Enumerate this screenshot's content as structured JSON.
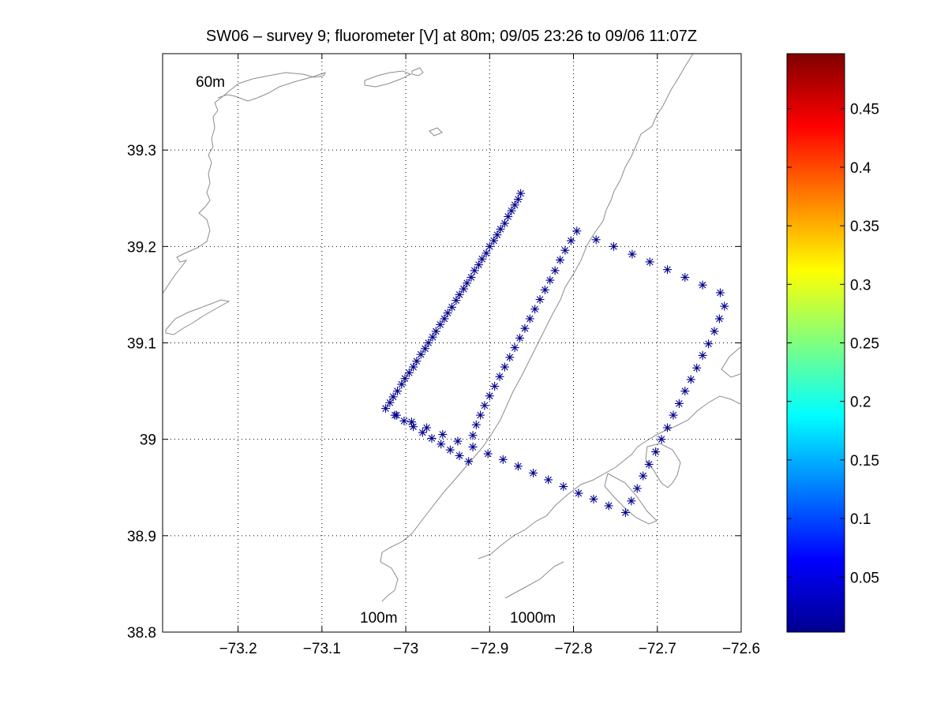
{
  "chart_data": {
    "type": "scatter",
    "title": "SW06 – survey 9; fluorometer [V] at 80m; 09/05 23:26 to 09/06 11:07Z",
    "xlim": [
      -73.29,
      -72.6
    ],
    "ylim": [
      38.8,
      39.4
    ],
    "x_ticks": [
      -73.2,
      -73.1,
      -73.0,
      -72.9,
      -72.8,
      -72.7,
      -72.6
    ],
    "x_tick_labels": [
      "−73.2",
      "−73.1",
      "−73",
      "−72.9",
      "−72.8",
      "−72.7",
      "−72.6"
    ],
    "y_ticks": [
      38.8,
      38.9,
      39.0,
      39.1,
      39.2,
      39.3
    ],
    "y_tick_labels": [
      "38.8",
      "38.9",
      "39",
      "39.1",
      "39.2",
      "39.3"
    ],
    "grid": true,
    "marker": "asterisk",
    "marker_color": "#00008b",
    "series": [
      {
        "points": [
          [
            -72.863,
            39.255
          ],
          [
            -72.866,
            39.249
          ],
          [
            -72.87,
            39.243
          ],
          [
            -72.874,
            39.237
          ],
          [
            -72.878,
            39.231
          ],
          [
            -72.882,
            39.224
          ],
          [
            -72.887,
            39.218
          ],
          [
            -72.891,
            39.212
          ],
          [
            -72.895,
            39.206
          ],
          [
            -72.9,
            39.2
          ],
          [
            -72.904,
            39.193
          ],
          [
            -72.909,
            39.187
          ],
          [
            -72.913,
            39.181
          ],
          [
            -72.918,
            39.175
          ],
          [
            -72.922,
            39.168
          ],
          [
            -72.927,
            39.162
          ],
          [
            -72.931,
            39.156
          ],
          [
            -72.936,
            39.15
          ],
          [
            -72.94,
            39.144
          ],
          [
            -72.945,
            39.137
          ],
          [
            -72.95,
            39.131
          ],
          [
            -72.954,
            39.125
          ],
          [
            -72.959,
            39.119
          ],
          [
            -72.964,
            39.112
          ],
          [
            -72.968,
            39.106
          ],
          [
            -72.973,
            39.1
          ],
          [
            -72.977,
            39.094
          ],
          [
            -72.982,
            39.088
          ],
          [
            -72.987,
            39.081
          ],
          [
            -72.991,
            39.075
          ],
          [
            -72.996,
            39.069
          ],
          [
            -73.001,
            39.063
          ],
          [
            -73.005,
            39.057
          ],
          [
            -73.01,
            39.05
          ],
          [
            -73.015,
            39.044
          ],
          [
            -73.019,
            39.038
          ],
          [
            -73.024,
            39.032
          ],
          [
            -73.013,
            39.025
          ],
          [
            -73.002,
            39.019
          ],
          [
            -72.991,
            39.013
          ],
          [
            -72.98,
            39.007
          ],
          [
            -72.969,
            39.001
          ],
          [
            -72.958,
            38.995
          ],
          [
            -72.947,
            38.989
          ],
          [
            -72.936,
            38.983
          ],
          [
            -72.925,
            38.977
          ],
          [
            -72.92,
            39.004
          ],
          [
            -72.916,
            39.015
          ],
          [
            -72.911,
            39.025
          ],
          [
            -72.906,
            39.035
          ],
          [
            -72.9,
            39.045
          ],
          [
            -72.894,
            39.055
          ],
          [
            -72.888,
            39.065
          ],
          [
            -72.882,
            39.075
          ],
          [
            -72.876,
            39.085
          ],
          [
            -72.87,
            39.095
          ],
          [
            -72.864,
            39.105
          ],
          [
            -72.858,
            39.115
          ],
          [
            -72.852,
            39.125
          ],
          [
            -72.846,
            39.135
          ],
          [
            -72.84,
            39.145
          ],
          [
            -72.834,
            39.155
          ],
          [
            -72.828,
            39.165
          ],
          [
            -72.822,
            39.175
          ],
          [
            -72.816,
            39.186
          ],
          [
            -72.81,
            39.196
          ],
          [
            -72.803,
            39.206
          ],
          [
            -72.796,
            39.216
          ],
          [
            -72.773,
            39.207
          ],
          [
            -72.752,
            39.2
          ],
          [
            -72.73,
            39.192
          ],
          [
            -72.709,
            39.184
          ],
          [
            -72.688,
            39.176
          ],
          [
            -72.667,
            39.168
          ],
          [
            -72.646,
            39.16
          ],
          [
            -72.625,
            39.152
          ],
          [
            -72.62,
            39.138
          ],
          [
            -72.626,
            39.125
          ],
          [
            -72.632,
            39.112
          ],
          [
            -72.639,
            39.099
          ],
          [
            -72.646,
            39.087
          ],
          [
            -72.653,
            39.074
          ],
          [
            -72.66,
            39.062
          ],
          [
            -72.667,
            39.05
          ],
          [
            -72.674,
            39.037
          ],
          [
            -72.681,
            39.025
          ],
          [
            -72.688,
            39.012
          ],
          [
            -72.695,
            39.0
          ],
          [
            -72.702,
            38.987
          ],
          [
            -72.71,
            38.974
          ],
          [
            -72.717,
            38.962
          ],
          [
            -72.724,
            38.949
          ],
          [
            -72.731,
            38.936
          ],
          [
            -72.738,
            38.924
          ],
          [
            -72.758,
            38.931
          ],
          [
            -72.776,
            38.938
          ],
          [
            -72.794,
            38.944
          ],
          [
            -72.812,
            38.951
          ],
          [
            -72.83,
            38.958
          ],
          [
            -72.848,
            38.965
          ],
          [
            -72.866,
            38.972
          ],
          [
            -72.884,
            38.979
          ],
          [
            -72.902,
            38.985
          ],
          [
            -72.92,
            38.992
          ],
          [
            -72.938,
            38.998
          ],
          [
            -72.956,
            39.005
          ],
          [
            -72.975,
            39.012
          ],
          [
            -72.993,
            39.018
          ],
          [
            -73.011,
            39.025
          ]
        ]
      }
    ],
    "contour_labels": [
      "60m",
      "100m",
      "1000m"
    ],
    "colorbar": {
      "colormap": "jet",
      "range": [
        0.003,
        0.497
      ],
      "ticks": [
        0.05,
        0.1,
        0.15,
        0.2,
        0.25,
        0.3,
        0.35,
        0.4,
        0.45
      ],
      "tick_labels": [
        "0.05",
        "0.1",
        "0.15",
        "0.2",
        "0.25",
        "0.3",
        "0.35",
        "0.4",
        "0.45"
      ]
    }
  }
}
